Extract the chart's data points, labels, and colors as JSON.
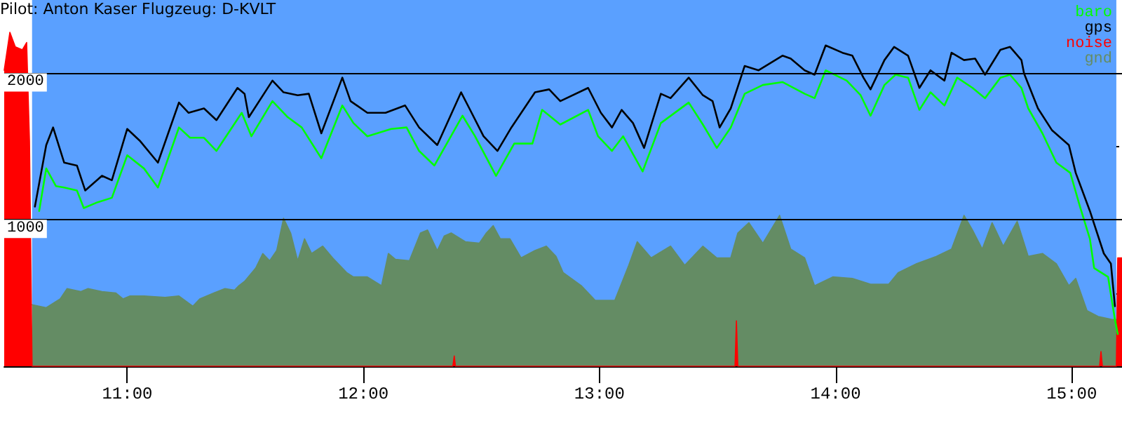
{
  "chart_data": {
    "type": "line",
    "title": "Pilot: Anton Kaser Flugzeug: D-KVLT",
    "xlim": [
      10.479,
      15.213
    ],
    "ylim": [
      0,
      2500
    ],
    "xticks": [
      {
        "value": 11,
        "label": "11:00"
      },
      {
        "value": 12,
        "label": "12:00"
      },
      {
        "value": 13,
        "label": "13:00"
      },
      {
        "value": 14,
        "label": "14:00"
      },
      {
        "value": 15,
        "label": "15:00"
      }
    ],
    "yticks": [
      {
        "value": 500,
        "label": null
      },
      1000,
      {
        "value": 1500,
        "label": null
      },
      2000
    ],
    "grid": "y",
    "legend": "top right",
    "marker": "none",
    "line_style": "solid",
    "bands": [
      {
        "axis": "x",
        "from": 10.597,
        "to": 15.189,
        "label": null,
        "color": "#5aa0ff"
      }
    ],
    "series": [
      {
        "name": "baro",
        "color": "#00ff00",
        "x": [
          10.627,
          10.657,
          10.698,
          10.733,
          10.787,
          10.816,
          10.875,
          10.935,
          11.0,
          11.071,
          11.13,
          11.219,
          11.266,
          11.325,
          11.378,
          11.485,
          11.526,
          11.615,
          11.68,
          11.739,
          11.822,
          11.911,
          11.958,
          12.017,
          12.118,
          12.183,
          12.236,
          12.301,
          12.42,
          12.473,
          12.562,
          12.639,
          12.716,
          12.757,
          12.834,
          12.952,
          12.994,
          13.053,
          13.1,
          13.183,
          13.26,
          13.378,
          13.438,
          13.497,
          13.556,
          13.615,
          13.692,
          13.775,
          13.869,
          13.911,
          13.958,
          14.047,
          14.106,
          14.148,
          14.207,
          14.254,
          14.307,
          14.355,
          14.402,
          14.461,
          14.515,
          14.58,
          14.633,
          14.698,
          14.739,
          14.787,
          14.816,
          14.876,
          14.935,
          14.994,
          15.035,
          15.077,
          15.095,
          15.154,
          15.183,
          15.195
        ],
        "values": [
          1060,
          1350,
          1230,
          1220,
          1200,
          1080,
          1120,
          1150,
          1440,
          1350,
          1220,
          1630,
          1560,
          1560,
          1470,
          1730,
          1570,
          1810,
          1700,
          1630,
          1420,
          1780,
          1660,
          1570,
          1620,
          1630,
          1470,
          1370,
          1710,
          1570,
          1300,
          1520,
          1520,
          1750,
          1650,
          1750,
          1570,
          1470,
          1570,
          1330,
          1660,
          1800,
          1650,
          1490,
          1630,
          1860,
          1920,
          1940,
          1860,
          1830,
          2020,
          1950,
          1850,
          1710,
          1920,
          1990,
          1970,
          1750,
          1870,
          1780,
          1970,
          1900,
          1830,
          1970,
          1990,
          1900,
          1760,
          1590,
          1390,
          1320,
          1090,
          870,
          670,
          610,
          320,
          220
        ]
      },
      {
        "name": "gps",
        "color": "#000000",
        "x": [
          10.609,
          10.657,
          10.686,
          10.733,
          10.787,
          10.822,
          10.893,
          10.935,
          11.0,
          11.053,
          11.13,
          11.219,
          11.26,
          11.325,
          11.378,
          11.467,
          11.497,
          11.515,
          11.615,
          11.662,
          11.722,
          11.769,
          11.822,
          11.911,
          11.946,
          12.017,
          12.094,
          12.177,
          12.236,
          12.313,
          12.414,
          12.449,
          12.509,
          12.568,
          12.627,
          12.727,
          12.787,
          12.834,
          12.952,
          13.006,
          13.053,
          13.094,
          13.142,
          13.189,
          13.26,
          13.301,
          13.378,
          13.438,
          13.479,
          13.509,
          13.556,
          13.615,
          13.674,
          13.775,
          13.81,
          13.869,
          13.911,
          13.958,
          14.029,
          14.071,
          14.118,
          14.148,
          14.207,
          14.248,
          14.307,
          14.355,
          14.402,
          14.461,
          14.491,
          14.544,
          14.591,
          14.633,
          14.698,
          14.739,
          14.787,
          14.798,
          14.857,
          14.917,
          14.988,
          15.017,
          15.077,
          15.136,
          15.166,
          15.183
        ],
        "values": [
          1090,
          1510,
          1630,
          1390,
          1370,
          1200,
          1300,
          1270,
          1620,
          1540,
          1390,
          1800,
          1730,
          1760,
          1680,
          1900,
          1860,
          1700,
          1950,
          1870,
          1850,
          1860,
          1590,
          1970,
          1810,
          1730,
          1730,
          1780,
          1630,
          1510,
          1870,
          1760,
          1570,
          1470,
          1630,
          1870,
          1890,
          1810,
          1900,
          1730,
          1630,
          1750,
          1660,
          1490,
          1860,
          1830,
          1970,
          1850,
          1810,
          1630,
          1760,
          2050,
          2020,
          2120,
          2100,
          2020,
          1990,
          2190,
          2140,
          2120,
          1970,
          1890,
          2090,
          2180,
          2120,
          1900,
          2020,
          1950,
          2140,
          2090,
          2100,
          1990,
          2160,
          2180,
          2090,
          2000,
          1760,
          1610,
          1510,
          1320,
          1060,
          770,
          700,
          410
        ]
      },
      {
        "name": "noise",
        "type": "area",
        "color": "#ff0000",
        "x": [
          10.479,
          10.503,
          10.526,
          10.556,
          10.574,
          10.586,
          10.597,
          12.379,
          12.385,
          12.39,
          13.574,
          13.58,
          13.586,
          15.118,
          15.124,
          15.13,
          15.189,
          15.195,
          15.213
        ],
        "values": [
          2020,
          2280,
          2180,
          2160,
          2210,
          1540,
          0,
          0,
          70,
          0,
          0,
          310,
          0,
          0,
          100,
          0,
          0,
          740,
          740
        ]
      },
      {
        "name": "gnd",
        "type": "area",
        "color": "#648c64",
        "x": [
          10.597,
          10.657,
          10.716,
          10.745,
          10.804,
          10.834,
          10.893,
          10.952,
          10.982,
          11.012,
          11.071,
          11.16,
          11.219,
          11.278,
          11.307,
          11.367,
          11.414,
          11.455,
          11.473,
          11.497,
          11.544,
          11.574,
          11.603,
          11.633,
          11.662,
          11.692,
          11.722,
          11.751,
          11.781,
          11.828,
          11.87,
          11.929,
          11.958,
          12.017,
          12.077,
          12.106,
          12.136,
          12.195,
          12.242,
          12.272,
          12.313,
          12.343,
          12.372,
          12.432,
          12.491,
          12.521,
          12.55,
          12.58,
          12.621,
          12.668,
          12.727,
          12.775,
          12.816,
          12.846,
          12.923,
          12.982,
          13.065,
          13.124,
          13.16,
          13.219,
          13.301,
          13.361,
          13.438,
          13.497,
          13.556,
          13.586,
          13.633,
          13.692,
          13.763,
          13.81,
          13.869,
          13.911,
          13.988,
          14.071,
          14.148,
          14.225,
          14.266,
          14.343,
          14.426,
          14.491,
          14.544,
          14.58,
          14.621,
          14.663,
          14.71,
          14.769,
          14.816,
          14.876,
          14.935,
          14.988,
          15.017,
          15.065,
          15.112,
          15.171,
          15.189
        ],
        "values": [
          420,
          400,
          460,
          530,
          510,
          530,
          510,
          500,
          460,
          480,
          480,
          470,
          480,
          410,
          460,
          500,
          530,
          520,
          550,
          580,
          670,
          770,
          720,
          790,
          1010,
          910,
          720,
          870,
          770,
          820,
          740,
          640,
          610,
          610,
          550,
          770,
          730,
          720,
          910,
          930,
          790,
          890,
          910,
          850,
          840,
          910,
          960,
          870,
          870,
          740,
          790,
          820,
          750,
          640,
          550,
          450,
          450,
          690,
          850,
          740,
          820,
          690,
          820,
          740,
          740,
          910,
          980,
          840,
          1030,
          800,
          740,
          550,
          610,
          600,
          560,
          560,
          640,
          700,
          750,
          800,
          1030,
          930,
          800,
          980,
          820,
          990,
          750,
          770,
          700,
          550,
          600,
          380,
          340,
          320,
          320
        ]
      }
    ]
  }
}
